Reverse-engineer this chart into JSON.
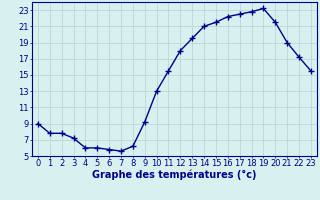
{
  "hours": [
    0,
    1,
    2,
    3,
    4,
    5,
    6,
    7,
    8,
    9,
    10,
    11,
    12,
    13,
    14,
    15,
    16,
    17,
    18,
    19,
    20,
    21,
    22,
    23
  ],
  "temps": [
    9.0,
    7.8,
    7.8,
    7.2,
    6.0,
    6.0,
    5.8,
    5.6,
    6.2,
    9.2,
    13.0,
    15.5,
    18.0,
    19.5,
    21.0,
    21.5,
    22.2,
    22.5,
    22.8,
    23.2,
    21.5,
    19.0,
    17.2,
    15.5
  ],
  "line_color": "#00008b",
  "marker": "+",
  "marker_size": 4,
  "marker_edge_width": 1.0,
  "xlabel": "Graphe des températures (°c)",
  "xlim": [
    -0.5,
    23.5
  ],
  "ylim": [
    5,
    24
  ],
  "yticks": [
    5,
    7,
    9,
    11,
    13,
    15,
    17,
    19,
    21,
    23
  ],
  "xticks": [
    0,
    1,
    2,
    3,
    4,
    5,
    6,
    7,
    8,
    9,
    10,
    11,
    12,
    13,
    14,
    15,
    16,
    17,
    18,
    19,
    20,
    21,
    22,
    23
  ],
  "grid_color": "#b0d4d4",
  "bg_color": "#d8f0f0",
  "axis_color": "#00008b",
  "tick_color": "#00008b",
  "xlabel_color": "#00008b",
  "xlabel_fontsize": 7,
  "tick_fontsize": 6,
  "line_width": 1.0
}
